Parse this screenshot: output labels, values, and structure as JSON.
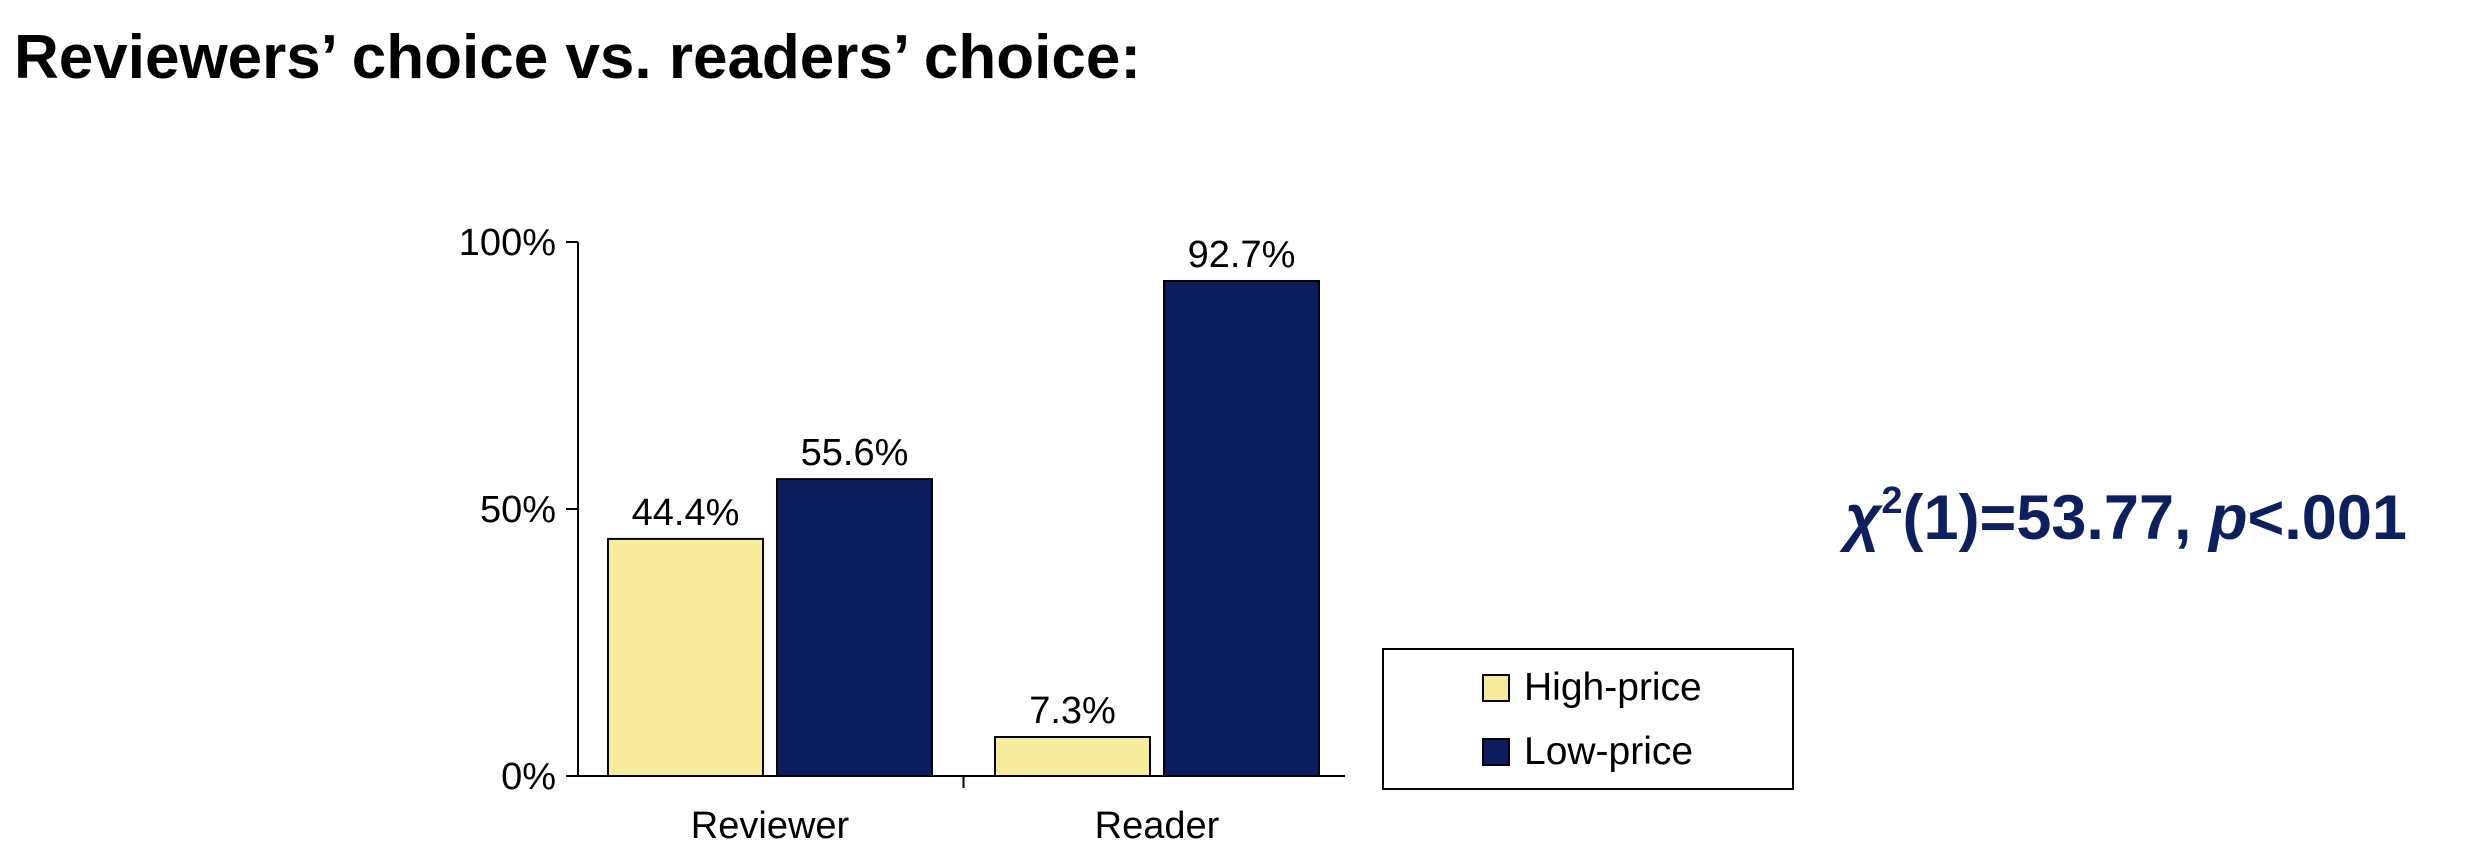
{
  "title": "Reviewers’ choice vs. readers’ choice:",
  "stat": {
    "chi": "χ",
    "sup": "2",
    "df": "(1)=53.77, ",
    "p": "p",
    "pval": "<.001"
  },
  "colors": {
    "high": "#f7ec9e",
    "low": "#0c1c5c",
    "stat": "#0d1f5c"
  },
  "chart_data": {
    "type": "bar",
    "categories": [
      "Reviewer",
      "Reader"
    ],
    "series": [
      {
        "name": "High-price",
        "values": [
          44.4,
          7.3
        ],
        "labels": [
          "44.4%",
          "7.3%"
        ]
      },
      {
        "name": "Low-price",
        "values": [
          55.6,
          92.7
        ],
        "labels": [
          "55.6%",
          "92.7%"
        ]
      }
    ],
    "ylim": [
      0,
      100
    ],
    "yticks": [
      0,
      50,
      100
    ],
    "ytick_labels": [
      "0%",
      "50%",
      "100%"
    ],
    "legend": "right",
    "grid": false
  }
}
